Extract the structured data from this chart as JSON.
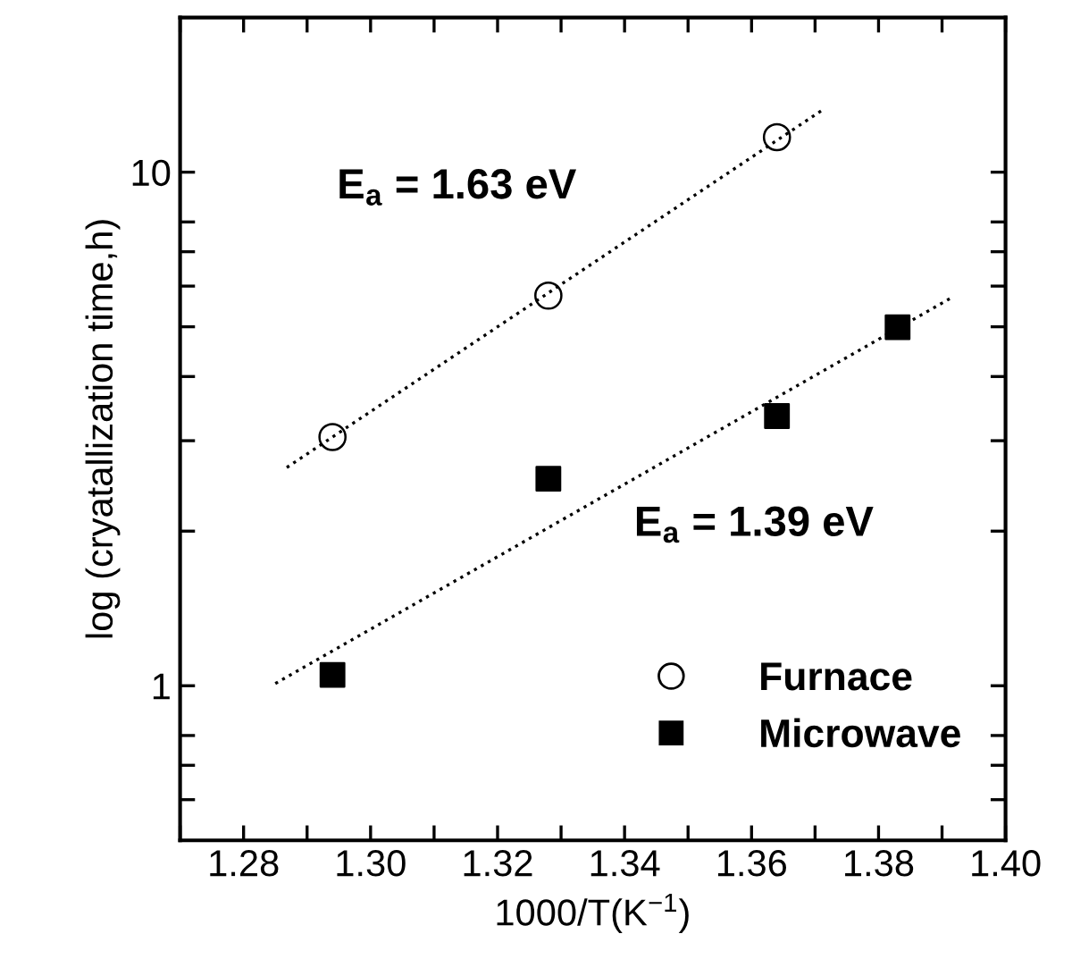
{
  "chart_data": {
    "type": "scatter",
    "xlabel": "1000/T(K$^{−1}$)",
    "ylabel": "log (cryatallization time,h)",
    "log": "y",
    "xlim": [
      1.27,
      1.4
    ],
    "ylim": [
      0.5,
      20
    ],
    "xticks": [
      {
        "value": 1.27,
        "label": null
      },
      1.28,
      {
        "value": 1.29,
        "label": null
      },
      {
        "value": 1.3,
        "label": "1.30"
      },
      {
        "value": 1.31,
        "label": null
      },
      1.32,
      {
        "value": 1.33,
        "label": null
      },
      1.34,
      {
        "value": 1.35,
        "label": null
      },
      1.36,
      {
        "value": 1.37,
        "label": null
      },
      1.38,
      {
        "value": 1.39,
        "label": null
      },
      {
        "value": 1.4,
        "label": "1.40"
      }
    ],
    "yticks": [
      {
        "value": 0.6,
        "label": null
      },
      {
        "value": 0.7,
        "label": null
      },
      {
        "value": 0.8,
        "label": null
      },
      1,
      {
        "value": 2,
        "label": null
      },
      {
        "value": 3,
        "label": null
      },
      {
        "value": 4,
        "label": null
      },
      {
        "value": 5,
        "label": null
      },
      {
        "value": 6,
        "label": null
      },
      {
        "value": 7,
        "label": null
      },
      {
        "value": 8,
        "label": null
      },
      10
    ],
    "legend": "bottom right",
    "grid": false,
    "series": [
      {
        "name": "Furnace",
        "marker": "circle",
        "color": "#000000",
        "x": [
          1.294,
          1.328,
          1.364
        ],
        "values": [
          3.05,
          5.75,
          11.7
        ]
      },
      {
        "name": "Microwave",
        "marker": "square",
        "color": "#000000",
        "x": [
          1.294,
          1.328,
          1.364,
          1.383
        ],
        "values": [
          1.05,
          2.53,
          3.35,
          4.99
        ]
      },
      {
        "type": "line",
        "marker": "none",
        "line_style": "dotted",
        "color": "#000000",
        "x": [
          1.2868,
          1.3715
        ],
        "values": [
          2.66,
          13.3
        ]
      },
      {
        "type": "line",
        "marker": "none",
        "line_style": "dotted",
        "color": "#000000",
        "x": [
          1.285,
          1.3912
        ],
        "values": [
          1.01,
          5.67
        ]
      }
    ],
    "annotations": [
      "E$_{a}$ = 1.63 eV",
      "E$_{a}$ = 1.39 eV"
    ]
  }
}
